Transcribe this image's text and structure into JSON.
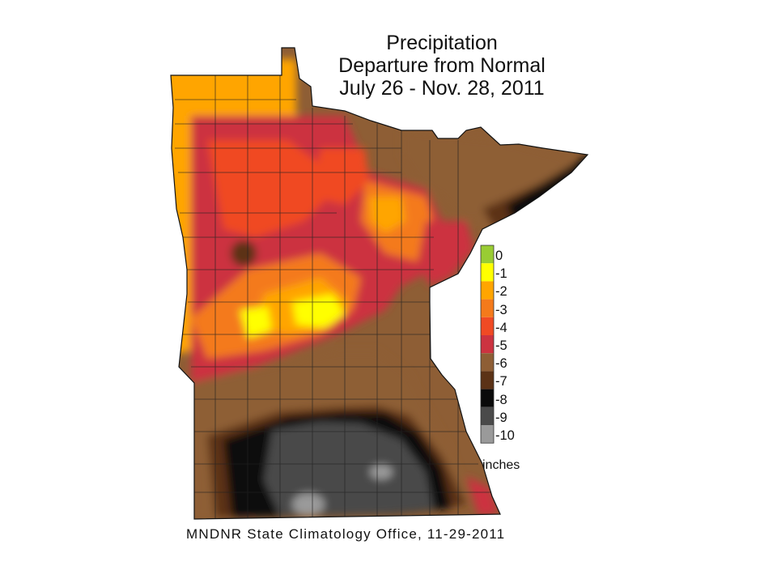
{
  "title_lines": [
    "Precipitation",
    "Departure from Normal",
    "July 26 - Nov. 28, 2011"
  ],
  "credit": "MNDNR State Climatology Office, 11-29-2011",
  "legend": {
    "unit": "inches",
    "labels": [
      "0",
      "-1",
      "-2",
      "-3",
      "-4",
      "-5",
      "-6",
      "-7",
      "-8",
      "-9",
      "-10"
    ],
    "bands": [
      {
        "range": "0 to -1",
        "color": "#99cc33"
      },
      {
        "range": "-1 to -2",
        "color": "#ffff00"
      },
      {
        "range": "-2 to -3",
        "color": "#ffa500"
      },
      {
        "range": "-3 to -4",
        "color": "#f47a1b"
      },
      {
        "range": "-4 to -5",
        "color": "#f04a24"
      },
      {
        "range": "-5 to -6",
        "color": "#cc3340"
      },
      {
        "range": "-6 to -7",
        "color": "#8e5e35"
      },
      {
        "range": "-7 to -8",
        "color": "#5b3216"
      },
      {
        "range": "-8 to -9",
        "color": "#0a0a0a"
      },
      {
        "range": "-9 to -10",
        "color": "#4a4a4a"
      },
      {
        "range": "below -10",
        "color": "#9a9a9a"
      }
    ]
  }
}
